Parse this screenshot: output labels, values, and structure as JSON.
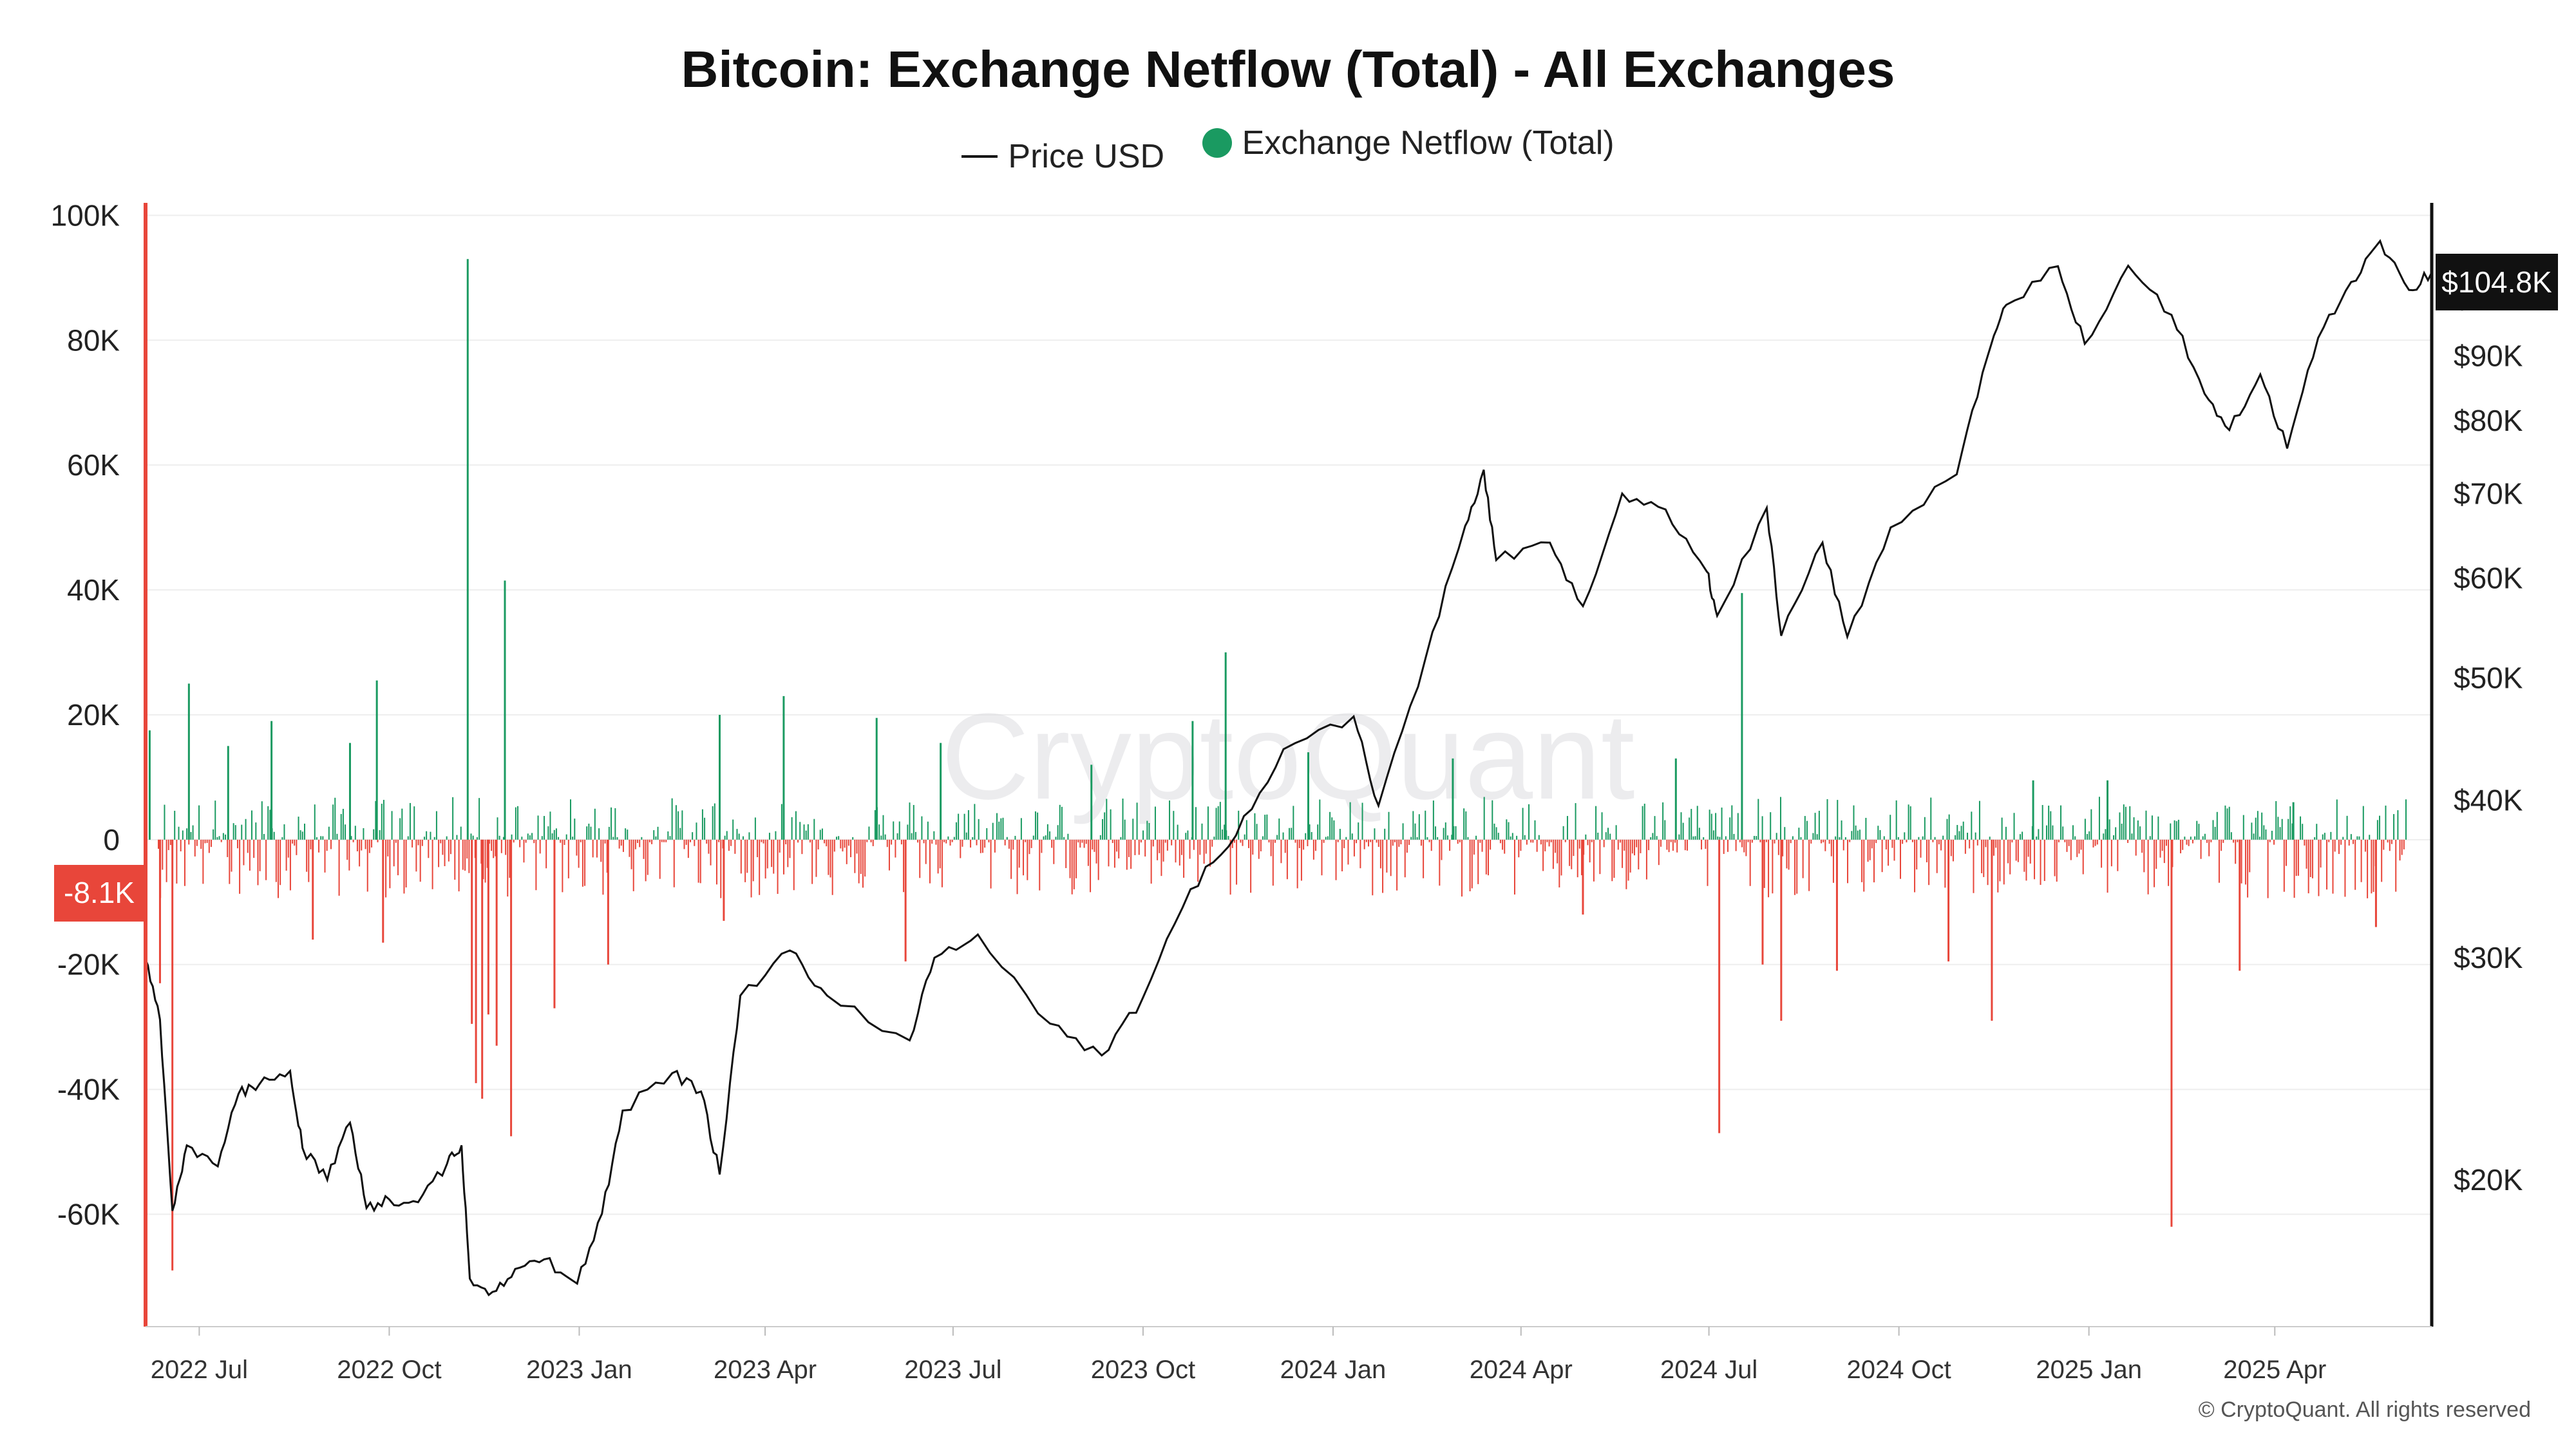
{
  "chart_data": {
    "type": "bar+line",
    "title": "Bitcoin: Exchange Netflow (Total) - All Exchanges",
    "legend": [
      {
        "name": "Price USD",
        "marker": "line",
        "color": "#222222"
      },
      {
        "name": "Exchange Netflow (Total)",
        "marker": "dot",
        "color": "#1a9a61"
      }
    ],
    "x_range": [
      "2022-06-05",
      "2025-06-16"
    ],
    "x_ticks": [
      {
        "label": "2022 Jul",
        "date": "2022-07-01"
      },
      {
        "label": "2022 Oct",
        "date": "2022-10-01"
      },
      {
        "label": "2023 Jan",
        "date": "2023-01-01"
      },
      {
        "label": "2023 Apr",
        "date": "2023-04-01"
      },
      {
        "label": "2023 Jul",
        "date": "2023-07-01"
      },
      {
        "label": "2023 Oct",
        "date": "2023-10-01"
      },
      {
        "label": "2024 Jan",
        "date": "2024-01-01"
      },
      {
        "label": "2024 Apr",
        "date": "2024-04-01"
      },
      {
        "label": "2024 Jul",
        "date": "2024-07-01"
      },
      {
        "label": "2024 Oct",
        "date": "2024-10-01"
      },
      {
        "label": "2025 Jan",
        "date": "2025-01-01"
      },
      {
        "label": "2025 Apr",
        "date": "2025-04-01"
      }
    ],
    "y_left": {
      "range": [
        -78000,
        102000
      ],
      "ticks": [
        {
          "value": 100000,
          "label": "100K"
        },
        {
          "value": 80000,
          "label": "80K"
        },
        {
          "value": 60000,
          "label": "60K"
        },
        {
          "value": 40000,
          "label": "40K"
        },
        {
          "value": 20000,
          "label": "20K"
        },
        {
          "value": 0,
          "label": "0"
        },
        {
          "value": -20000,
          "label": "-20K"
        },
        {
          "value": -40000,
          "label": "-40K"
        },
        {
          "value": -60000,
          "label": "-60K"
        }
      ]
    },
    "y_right": {
      "scale": "log",
      "range": [
        15300,
        119000
      ],
      "ticks": [
        {
          "value": 100000,
          "label": "$100K"
        },
        {
          "value": 90000,
          "label": "$90K"
        },
        {
          "value": 80000,
          "label": "$80K"
        },
        {
          "value": 70000,
          "label": "$70K"
        },
        {
          "value": 60000,
          "label": "$60K"
        },
        {
          "value": 50000,
          "label": "$50K"
        },
        {
          "value": 40000,
          "label": "$40K"
        },
        {
          "value": 30000,
          "label": "$30K"
        },
        {
          "value": 20000,
          "label": "$20K"
        }
      ]
    },
    "latest_netflow": {
      "value": -8100,
      "label": "-8.1K",
      "color": "#e8463a"
    },
    "latest_price": {
      "value": 104800,
      "label": "$104.8K",
      "color": "#111111"
    },
    "colors": {
      "inflow": "#1a9a61",
      "outflow": "#e8463a",
      "price": "#111111",
      "grid": "#eeeeee"
    },
    "netflow_spikes": [
      {
        "date": "2022-06-07",
        "value": 17500
      },
      {
        "date": "2022-06-12",
        "value": -23000
      },
      {
        "date": "2022-06-18",
        "value": -69000
      },
      {
        "date": "2022-06-26",
        "value": 25000
      },
      {
        "date": "2022-07-15",
        "value": 15000
      },
      {
        "date": "2022-08-05",
        "value": 19000
      },
      {
        "date": "2022-08-25",
        "value": -16000
      },
      {
        "date": "2022-09-12",
        "value": 15500
      },
      {
        "date": "2022-09-25",
        "value": 25500
      },
      {
        "date": "2022-09-28",
        "value": -16500
      },
      {
        "date": "2022-11-08",
        "value": 93000
      },
      {
        "date": "2022-11-10",
        "value": -29500
      },
      {
        "date": "2022-11-12",
        "value": -39000
      },
      {
        "date": "2022-11-15",
        "value": -41500
      },
      {
        "date": "2022-11-18",
        "value": -28000
      },
      {
        "date": "2022-11-22",
        "value": -33000
      },
      {
        "date": "2022-11-26",
        "value": 41500
      },
      {
        "date": "2022-11-29",
        "value": -47500
      },
      {
        "date": "2022-12-20",
        "value": -27000
      },
      {
        "date": "2023-01-15",
        "value": -20000
      },
      {
        "date": "2023-03-10",
        "value": 20000
      },
      {
        "date": "2023-03-12",
        "value": -13000
      },
      {
        "date": "2023-04-10",
        "value": 23000
      },
      {
        "date": "2023-05-25",
        "value": 19500
      },
      {
        "date": "2023-06-08",
        "value": -19500
      },
      {
        "date": "2023-06-25",
        "value": 15500
      },
      {
        "date": "2023-09-06",
        "value": 12000
      },
      {
        "date": "2023-10-25",
        "value": 19000
      },
      {
        "date": "2023-11-10",
        "value": 30000
      },
      {
        "date": "2023-12-20",
        "value": 14000
      },
      {
        "date": "2024-02-28",
        "value": 13000
      },
      {
        "date": "2024-05-01",
        "value": -12000
      },
      {
        "date": "2024-06-15",
        "value": 13000
      },
      {
        "date": "2024-07-06",
        "value": -47000
      },
      {
        "date": "2024-07-17",
        "value": 39500
      },
      {
        "date": "2024-07-27",
        "value": -20000
      },
      {
        "date": "2024-08-05",
        "value": -29000
      },
      {
        "date": "2024-09-01",
        "value": -21000
      },
      {
        "date": "2024-10-25",
        "value": -19500
      },
      {
        "date": "2024-11-15",
        "value": -29000
      },
      {
        "date": "2024-12-05",
        "value": 9500
      },
      {
        "date": "2025-01-10",
        "value": 9500
      },
      {
        "date": "2025-02-10",
        "value": -62000
      },
      {
        "date": "2025-03-15",
        "value": -21000
      },
      {
        "date": "2025-04-10",
        "value": 6000
      },
      {
        "date": "2025-05-20",
        "value": -14000
      }
    ],
    "price_series": [
      {
        "date": "2022-06-05",
        "price": 29900
      },
      {
        "date": "2022-06-12",
        "price": 26800
      },
      {
        "date": "2022-06-18",
        "price": 18900
      },
      {
        "date": "2022-06-25",
        "price": 21300
      },
      {
        "date": "2022-07-10",
        "price": 20500
      },
      {
        "date": "2022-07-20",
        "price": 23400
      },
      {
        "date": "2022-07-30",
        "price": 23800
      },
      {
        "date": "2022-08-14",
        "price": 24400
      },
      {
        "date": "2022-08-20",
        "price": 21200
      },
      {
        "date": "2022-09-01",
        "price": 20000
      },
      {
        "date": "2022-09-12",
        "price": 22200
      },
      {
        "date": "2022-09-20",
        "price": 19000
      },
      {
        "date": "2022-10-01",
        "price": 19300
      },
      {
        "date": "2022-10-15",
        "price": 19200
      },
      {
        "date": "2022-10-29",
        "price": 20600
      },
      {
        "date": "2022-11-05",
        "price": 21300
      },
      {
        "date": "2022-11-09",
        "price": 16700
      },
      {
        "date": "2022-11-20",
        "price": 16300
      },
      {
        "date": "2022-12-01",
        "price": 17000
      },
      {
        "date": "2022-12-15",
        "price": 17300
      },
      {
        "date": "2022-12-31",
        "price": 16550
      },
      {
        "date": "2023-01-12",
        "price": 18800
      },
      {
        "date": "2023-01-22",
        "price": 22700
      },
      {
        "date": "2023-02-15",
        "price": 24300
      },
      {
        "date": "2023-03-01",
        "price": 23500
      },
      {
        "date": "2023-03-10",
        "price": 20200
      },
      {
        "date": "2023-03-20",
        "price": 28000
      },
      {
        "date": "2023-04-13",
        "price": 30400
      },
      {
        "date": "2023-05-01",
        "price": 28000
      },
      {
        "date": "2023-06-10",
        "price": 25800
      },
      {
        "date": "2023-06-22",
        "price": 30000
      },
      {
        "date": "2023-07-13",
        "price": 31300
      },
      {
        "date": "2023-08-17",
        "price": 26600
      },
      {
        "date": "2023-09-11",
        "price": 25100
      },
      {
        "date": "2023-10-01",
        "price": 27900
      },
      {
        "date": "2023-10-24",
        "price": 34000
      },
      {
        "date": "2023-11-15",
        "price": 37500
      },
      {
        "date": "2023-12-08",
        "price": 43900
      },
      {
        "date": "2024-01-11",
        "price": 46600
      },
      {
        "date": "2024-01-23",
        "price": 39600
      },
      {
        "date": "2024-02-15",
        "price": 52000
      },
      {
        "date": "2024-03-05",
        "price": 66000
      },
      {
        "date": "2024-03-14",
        "price": 73100
      },
      {
        "date": "2024-03-20",
        "price": 62000
      },
      {
        "date": "2024-04-15",
        "price": 64000
      },
      {
        "date": "2024-05-01",
        "price": 57000
      },
      {
        "date": "2024-05-20",
        "price": 70000
      },
      {
        "date": "2024-06-10",
        "price": 68000
      },
      {
        "date": "2024-06-30",
        "price": 60700
      },
      {
        "date": "2024-07-05",
        "price": 56000
      },
      {
        "date": "2024-07-29",
        "price": 68200
      },
      {
        "date": "2024-08-05",
        "price": 54000
      },
      {
        "date": "2024-08-25",
        "price": 64000
      },
      {
        "date": "2024-09-06",
        "price": 53900
      },
      {
        "date": "2024-09-27",
        "price": 65800
      },
      {
        "date": "2024-10-29",
        "price": 72500
      },
      {
        "date": "2024-11-13",
        "price": 90000
      },
      {
        "date": "2024-11-22",
        "price": 98800
      },
      {
        "date": "2024-12-17",
        "price": 106000
      },
      {
        "date": "2024-12-30",
        "price": 92000
      },
      {
        "date": "2025-01-20",
        "price": 106100
      },
      {
        "date": "2025-02-10",
        "price": 97000
      },
      {
        "date": "2025-02-26",
        "price": 84000
      },
      {
        "date": "2025-03-10",
        "price": 78600
      },
      {
        "date": "2025-03-25",
        "price": 87000
      },
      {
        "date": "2025-04-07",
        "price": 76000
      },
      {
        "date": "2025-04-22",
        "price": 93000
      },
      {
        "date": "2025-05-08",
        "price": 103000
      },
      {
        "date": "2025-05-22",
        "price": 111000
      },
      {
        "date": "2025-06-05",
        "price": 101500
      },
      {
        "date": "2025-06-16",
        "price": 104800
      }
    ]
  },
  "watermark": "CryptoQuant",
  "credit": "© CryptoQuant. All rights reserved"
}
